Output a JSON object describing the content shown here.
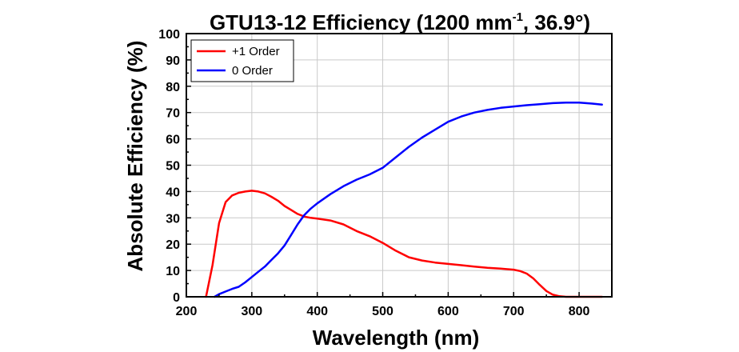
{
  "chart_data": {
    "type": "line",
    "title_main": "GTU13-12 Efficiency (1200 mm",
    "title_sup": "-1",
    "title_tail": ", 36.9°)",
    "xlabel": "Wavelength (nm)",
    "ylabel": "Absolute Efficiency (%)",
    "xlim": [
      200,
      850
    ],
    "ylim": [
      0,
      100
    ],
    "xticks": [
      200,
      300,
      400,
      500,
      600,
      700,
      800
    ],
    "yticks": [
      0,
      10,
      20,
      30,
      40,
      50,
      60,
      70,
      80,
      90,
      100
    ],
    "grid": true,
    "legend_position": "top-left",
    "series": [
      {
        "name": "+1 Order",
        "color": "#ff0000",
        "x": [
          230,
          240,
          250,
          260,
          270,
          280,
          290,
          300,
          310,
          320,
          330,
          340,
          350,
          360,
          370,
          380,
          390,
          400,
          420,
          440,
          460,
          480,
          500,
          520,
          540,
          560,
          580,
          600,
          620,
          640,
          660,
          680,
          700,
          710,
          720,
          730,
          740,
          750,
          760,
          770,
          780,
          790,
          800,
          820,
          835
        ],
        "y": [
          0,
          12,
          28,
          36,
          38.5,
          39.5,
          40,
          40.3,
          40,
          39.3,
          38,
          36.5,
          34.5,
          33,
          31.5,
          30.5,
          30,
          29.7,
          29,
          27.5,
          25,
          23,
          20.5,
          17.5,
          15,
          13.8,
          13,
          12.5,
          12,
          11.5,
          11,
          10.7,
          10.3,
          9.8,
          8.8,
          7,
          4.5,
          2.2,
          0.8,
          0.2,
          0,
          0,
          0,
          0,
          0
        ]
      },
      {
        "name": "0 Order",
        "color": "#0000ff",
        "x": [
          243,
          250,
          260,
          270,
          280,
          290,
          300,
          310,
          320,
          330,
          340,
          350,
          360,
          370,
          380,
          390,
          400,
          420,
          440,
          460,
          480,
          500,
          520,
          540,
          560,
          580,
          600,
          620,
          640,
          660,
          680,
          700,
          720,
          740,
          760,
          780,
          800,
          820,
          835
        ],
        "y": [
          0,
          1,
          2,
          3,
          3.8,
          5.5,
          7.5,
          9.5,
          11.5,
          14,
          16.5,
          19.5,
          23.5,
          27.5,
          31,
          33.5,
          35.5,
          39,
          42,
          44.5,
          46.5,
          49,
          53,
          57,
          60.5,
          63.5,
          66.5,
          68.5,
          70,
          71,
          71.8,
          72.3,
          72.8,
          73.2,
          73.6,
          73.8,
          73.8,
          73.4,
          73
        ]
      }
    ]
  }
}
